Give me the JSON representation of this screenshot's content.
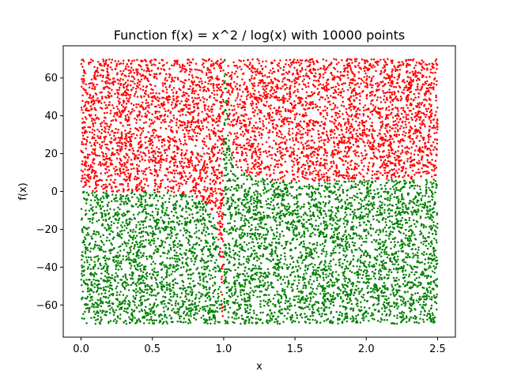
{
  "chart_data": {
    "type": "scatter",
    "title": "Function f(x) = x^2 / log(x) with 10000 points",
    "xlabel": "x",
    "ylabel": "f(x)",
    "xlim": [
      -0.125,
      2.625
    ],
    "ylim": [
      -77,
      77
    ],
    "xticks": [
      0.0,
      0.5,
      1.0,
      1.5,
      2.0,
      2.5
    ],
    "xtick_labels": [
      "0.0",
      "0.5",
      "1.0",
      "1.5",
      "2.0",
      "2.5"
    ],
    "yticks": [
      -60,
      -40,
      -20,
      0,
      20,
      40,
      60
    ],
    "ytick_labels": [
      "−60",
      "−40",
      "−20",
      "0",
      "20",
      "40",
      "60"
    ],
    "grid": false,
    "legend": "none",
    "sample_domain": {
      "x": [
        0.0,
        2.5
      ],
      "y": [
        -70,
        70
      ]
    },
    "point_count": 10000,
    "rule": "point is red when y > x^2 / log(x), green otherwise",
    "series": [
      {
        "color": "#ff0000",
        "condition": "y > x^2/log(x)"
      },
      {
        "color": "#008000",
        "condition": "y <= x^2/log(x)"
      }
    ]
  }
}
